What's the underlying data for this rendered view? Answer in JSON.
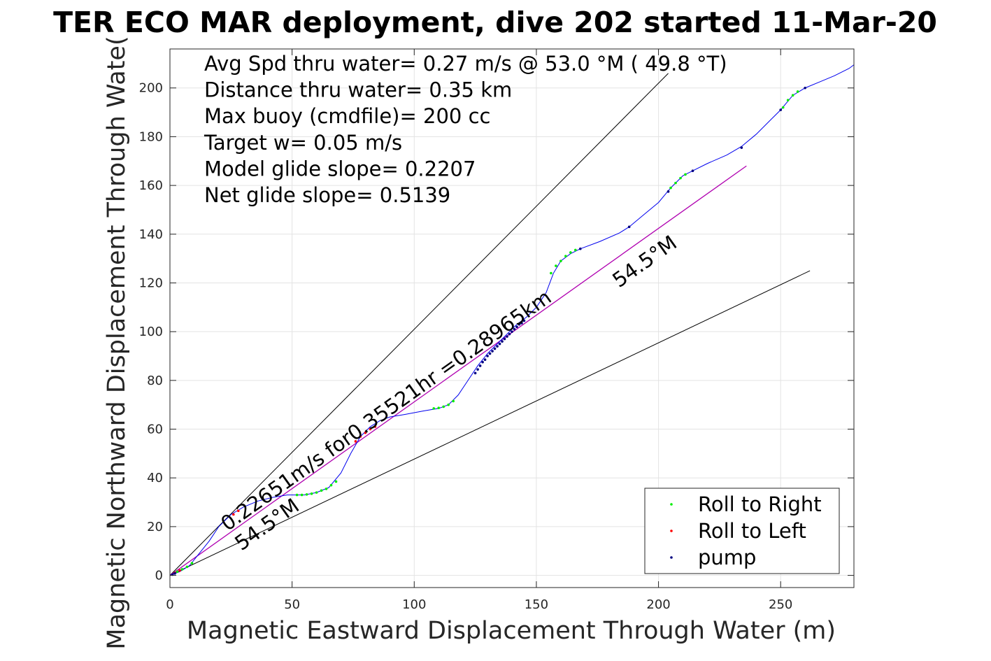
{
  "chart_data": {
    "type": "scatter",
    "title": "TER ECO MAR deployment, dive 202 started 11-Mar-20",
    "xlabel": "Magnetic Eastward Displacement Through Water (m)",
    "ylabel": "Magnetic Northward Displacement Through Wate(",
    "xlim": [
      0,
      280
    ],
    "ylim": [
      -5,
      216
    ],
    "x_ticks": [
      0,
      50,
      100,
      150,
      200,
      250
    ],
    "y_ticks": [
      0,
      20,
      40,
      60,
      80,
      100,
      120,
      140,
      160,
      180,
      200
    ],
    "grid": true,
    "legend_position": "bottom-right",
    "info_lines": [
      "Avg Spd thru water=  0.27 m/s @  53.0 °M ( 49.8 °T)",
      "Distance thru water=  0.35 km",
      "Max buoy (cmdfile)= 200 cc",
      "Target w= 0.05 m/s",
      "Model glide slope= 0.2207",
      "Net glide slope= 0.5139"
    ],
    "annotations": {
      "track_label": "0.22651m/s for0.35521hr =0.28965km",
      "heading_upper": "54.5°M",
      "heading_lower": "54.5°M"
    },
    "reference_lines": [
      {
        "name": "upper bound",
        "color": "#000000",
        "points": [
          [
            0,
            0
          ],
          [
            204,
            206
          ]
        ]
      },
      {
        "name": "lower bound",
        "color": "#000000",
        "points": [
          [
            0,
            0
          ],
          [
            262,
            125
          ]
        ]
      },
      {
        "name": "heading line",
        "color": "#b000b0",
        "points": [
          [
            0,
            0
          ],
          [
            236,
            168
          ]
        ]
      }
    ],
    "track": {
      "color": "#0000ee",
      "points": [
        [
          0,
          0
        ],
        [
          4,
          1.5
        ],
        [
          8,
          4
        ],
        [
          12,
          9
        ],
        [
          16,
          14
        ],
        [
          20,
          20
        ],
        [
          25,
          25
        ],
        [
          30,
          28
        ],
        [
          36,
          30.5
        ],
        [
          42,
          32
        ],
        [
          48,
          33
        ],
        [
          55,
          33
        ],
        [
          60,
          34
        ],
        [
          65,
          36
        ],
        [
          70,
          42
        ],
        [
          74,
          50
        ],
        [
          78,
          57
        ],
        [
          82,
          61
        ],
        [
          86,
          63.5
        ],
        [
          90,
          65
        ],
        [
          96,
          66
        ],
        [
          104,
          67.5
        ],
        [
          110,
          68.5
        ],
        [
          114,
          70
        ],
        [
          118,
          74
        ],
        [
          122,
          80
        ],
        [
          126,
          86
        ],
        [
          130,
          91
        ],
        [
          134,
          95
        ],
        [
          138,
          99
        ],
        [
          142,
          103
        ],
        [
          146,
          106
        ],
        [
          150,
          110
        ],
        [
          154,
          116
        ],
        [
          157,
          124
        ],
        [
          160,
          129
        ],
        [
          164,
          132
        ],
        [
          168,
          134
        ],
        [
          176,
          137
        ],
        [
          184,
          140.5
        ],
        [
          188,
          143
        ],
        [
          194,
          148
        ],
        [
          200,
          153
        ],
        [
          205,
          159
        ],
        [
          210,
          164
        ],
        [
          214,
          166
        ],
        [
          220,
          169
        ],
        [
          228,
          172.5
        ],
        [
          234,
          176
        ],
        [
          240,
          181
        ],
        [
          246,
          187
        ],
        [
          250,
          191
        ],
        [
          255,
          197
        ],
        [
          260,
          200
        ],
        [
          266,
          202.5
        ],
        [
          272,
          205
        ],
        [
          278,
          208
        ],
        [
          280,
          209.5
        ]
      ]
    },
    "series": [
      {
        "name": "Roll to Right",
        "color": "#00ee00",
        "points": [
          [
            3,
            1.5
          ],
          [
            5,
            2.5
          ],
          [
            7,
            3.5
          ],
          [
            9,
            5
          ],
          [
            52,
            33
          ],
          [
            54,
            33
          ],
          [
            56,
            33.2
          ],
          [
            58,
            33.5
          ],
          [
            60,
            34
          ],
          [
            62,
            34.8
          ],
          [
            64,
            35.5
          ],
          [
            66,
            37
          ],
          [
            68,
            38.5
          ],
          [
            108,
            68.5
          ],
          [
            110,
            68.7
          ],
          [
            112,
            69.2
          ],
          [
            114,
            70
          ],
          [
            116,
            71.5
          ],
          [
            156,
            124
          ],
          [
            158,
            127
          ],
          [
            160,
            129
          ],
          [
            162,
            131
          ],
          [
            164,
            132.5
          ],
          [
            166,
            133.5
          ],
          [
            205,
            159
          ],
          [
            207,
            161
          ],
          [
            209,
            163
          ],
          [
            211,
            164.5
          ],
          [
            251,
            192
          ],
          [
            253,
            195
          ],
          [
            255,
            197
          ],
          [
            257,
            198.5
          ]
        ]
      },
      {
        "name": "Roll to Left",
        "color": "#ff0000",
        "points": [
          [
            2,
            1
          ],
          [
            4,
            2
          ],
          [
            76,
            55
          ],
          [
            78,
            57
          ],
          [
            80,
            58.5
          ],
          [
            82,
            60
          ],
          [
            84,
            61
          ],
          [
            26,
            25
          ],
          [
            28,
            26.5
          ]
        ]
      },
      {
        "name": "pump",
        "color": "#000080",
        "points": [
          [
            1,
            0.3
          ],
          [
            2,
            0.8
          ],
          [
            125,
            83
          ],
          [
            126,
            84.5
          ],
          [
            127,
            86
          ],
          [
            128,
            87.5
          ],
          [
            129,
            88.5
          ],
          [
            130,
            90
          ],
          [
            131,
            91
          ],
          [
            132,
            92
          ],
          [
            133,
            93
          ],
          [
            134,
            94
          ],
          [
            135,
            95
          ],
          [
            136,
            96
          ],
          [
            137,
            97
          ],
          [
            138,
            98
          ],
          [
            139,
            99
          ],
          [
            140,
            100
          ],
          [
            141,
            101
          ],
          [
            142,
            102
          ],
          [
            143,
            103
          ],
          [
            144,
            103.5
          ],
          [
            145,
            104.5
          ],
          [
            168,
            134
          ],
          [
            188,
            143
          ],
          [
            204,
            157.5
          ],
          [
            214,
            166
          ],
          [
            234,
            175.5
          ],
          [
            250,
            191
          ],
          [
            260,
            200
          ]
        ]
      }
    ]
  }
}
